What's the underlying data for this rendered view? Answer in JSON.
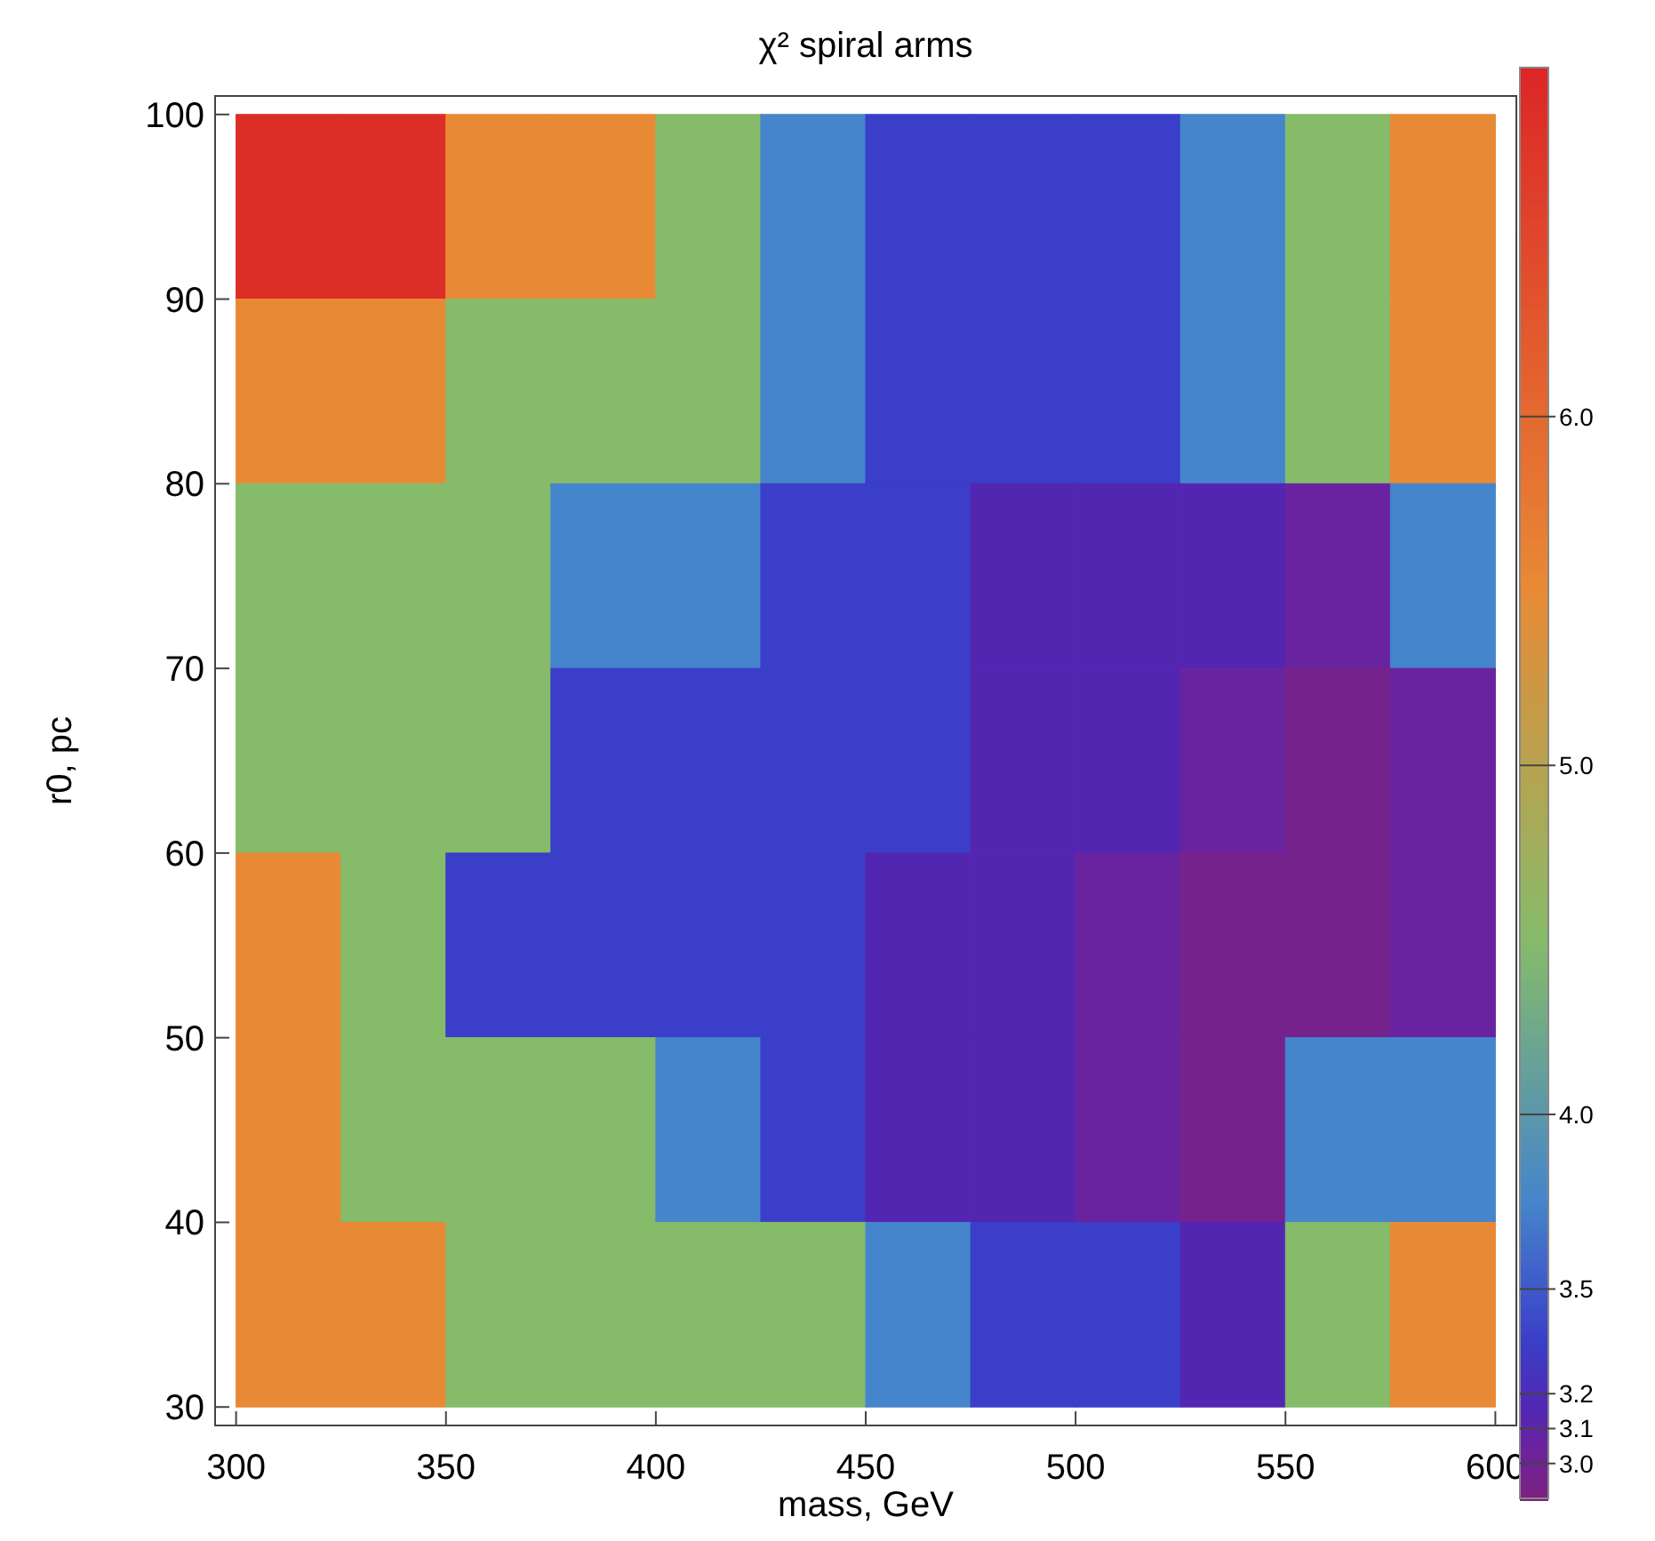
{
  "chart_data": {
    "type": "heatmap",
    "title": "χ² spiral arms",
    "xlabel": "mass, GeV",
    "ylabel": "r0, pc",
    "x": [
      312.5,
      337.5,
      362.5,
      387.5,
      412.5,
      437.5,
      462.5,
      487.5,
      512.5,
      537.5,
      562.5,
      587.5
    ],
    "y": [
      95,
      85,
      75,
      65,
      55,
      45,
      35
    ],
    "cells": [
      [
        6.9,
        6.9,
        5.5,
        5.5,
        4.5,
        3.75,
        3.35,
        3.35,
        3.35,
        3.75,
        4.5,
        5.5
      ],
      [
        5.5,
        5.5,
        4.5,
        4.5,
        4.5,
        3.75,
        3.35,
        3.35,
        3.35,
        3.75,
        4.5,
        5.5
      ],
      [
        4.5,
        4.5,
        4.5,
        3.75,
        3.75,
        3.35,
        3.35,
        3.15,
        3.15,
        3.15,
        3.05,
        3.75
      ],
      [
        4.5,
        4.5,
        4.5,
        3.35,
        3.35,
        3.35,
        3.35,
        3.15,
        3.15,
        3.05,
        2.95,
        3.05
      ],
      [
        5.5,
        4.5,
        3.35,
        3.35,
        3.35,
        3.35,
        3.15,
        3.15,
        3.05,
        2.95,
        2.95,
        3.05
      ],
      [
        5.5,
        4.5,
        4.5,
        4.5,
        3.75,
        3.35,
        3.15,
        3.15,
        3.05,
        2.95,
        3.75,
        3.75
      ],
      [
        5.5,
        5.5,
        4.5,
        4.5,
        4.5,
        4.5,
        3.75,
        3.35,
        3.35,
        3.15,
        4.5,
        5.5
      ]
    ],
    "xlim": [
      295,
      605
    ],
    "ylim": [
      29,
      101
    ],
    "xticks": [
      300,
      350,
      400,
      450,
      500,
      550,
      600
    ],
    "yticks": [
      30,
      40,
      50,
      60,
      70,
      80,
      90,
      100
    ],
    "clim": [
      2.9,
      7
    ],
    "cticks": [
      {
        "value": 3,
        "label": "3.0"
      },
      3.1,
      3.2,
      3.5,
      {
        "value": 4,
        "label": "4.0"
      },
      {
        "value": 5,
        "label": "5.0"
      },
      {
        "value": 6,
        "label": "6.0"
      }
    ],
    "colors": [
      "#7b2182",
      "#6a23a0",
      "#5326b2",
      "#3b3ec8",
      "#4585cb",
      "#86bb6a",
      "#e88a35",
      "#dc2626"
    ]
  }
}
